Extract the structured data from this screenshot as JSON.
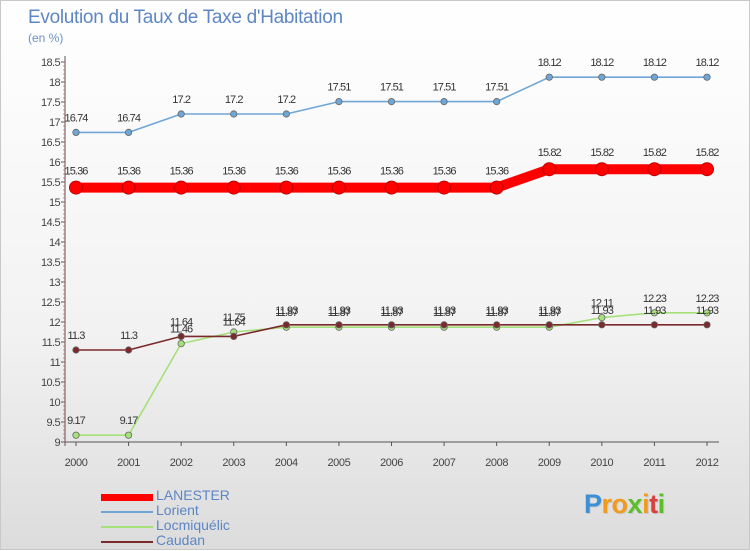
{
  "header": {
    "title": "Evolution du Taux de Taxe d'Habitation",
    "subtitle": "(en %)"
  },
  "chart_data": {
    "type": "line",
    "title": "Evolution du Taux de Taxe d'Habitation",
    "ylabel": "(en %)",
    "xlabel": "",
    "x": [
      "2000",
      "2001",
      "2002",
      "2003",
      "2004",
      "2005",
      "2006",
      "2007",
      "2008",
      "2009",
      "2010",
      "2011",
      "2012"
    ],
    "ylim": [
      9,
      18.5
    ],
    "yticks": [
      9,
      9.5,
      10,
      10.5,
      11,
      11.5,
      12,
      12.5,
      13,
      13.5,
      14,
      14.5,
      15,
      15.5,
      16,
      16.5,
      17,
      17.5,
      18,
      18.5
    ],
    "grid": false,
    "legend_position": "bottom-left",
    "series": [
      {
        "name": "LANESTER",
        "color": "#ff0000",
        "values": [
          15.36,
          15.36,
          15.36,
          15.36,
          15.36,
          15.36,
          15.36,
          15.36,
          15.36,
          15.82,
          15.82,
          15.82,
          15.82
        ],
        "labels": [
          "15.36",
          "15.36",
          "15.36",
          "15.36",
          "15.36",
          "15.36",
          "15.36",
          "15.36",
          "15.36",
          "15.82",
          "15.82",
          "15.82",
          "15.82"
        ]
      },
      {
        "name": "Lorient",
        "color": "#6fa6d6",
        "values": [
          16.74,
          16.74,
          17.2,
          17.2,
          17.2,
          17.51,
          17.51,
          17.51,
          17.51,
          18.12,
          18.12,
          18.12,
          18.12
        ],
        "labels": [
          "16.74",
          "16.74",
          "17.2",
          "17.2",
          "17.2",
          "17.51",
          "17.51",
          "17.51",
          "17.51",
          "18.12",
          "18.12",
          "18.12",
          "18.12"
        ]
      },
      {
        "name": "Locmiquélic",
        "color": "#a6e07a",
        "values": [
          9.17,
          9.17,
          11.46,
          11.75,
          11.87,
          11.87,
          11.87,
          11.87,
          11.87,
          11.87,
          12.11,
          12.23,
          12.23
        ],
        "labels": [
          "9.17",
          "9.17",
          "11.46",
          "11.75",
          "11.87",
          "11.87",
          "11.87",
          "11.87",
          "11.87",
          "11.87",
          "12.11",
          "12.23",
          "12.23"
        ]
      },
      {
        "name": "Caudan",
        "color": "#7a2a2a",
        "values": [
          11.3,
          11.3,
          11.64,
          11.64,
          11.93,
          11.93,
          11.93,
          11.93,
          11.93,
          11.93,
          11.93,
          11.93,
          11.93
        ],
        "labels": [
          "11.3",
          "11.3",
          "11.64",
          "11.64",
          "11.93",
          "11.93",
          "11.93",
          "11.93",
          "11.93",
          "11.93",
          "11.93",
          "11.93",
          "11.93"
        ]
      }
    ]
  },
  "legend": {
    "items": [
      {
        "label": "LANESTER",
        "color": "#ff0000"
      },
      {
        "label": "Lorient",
        "color": "#6fa6d6"
      },
      {
        "label": "Locmiquélic",
        "color": "#a6e07a"
      },
      {
        "label": "Caudan",
        "color": "#7a2a2a"
      }
    ]
  },
  "logo": {
    "letters": [
      "P",
      "r",
      "o",
      "x",
      "i",
      "t",
      "i"
    ],
    "colors": [
      "#3a8fd6",
      "#f29a1e",
      "#f29a1e",
      "#5cbf2a",
      "#f29a1e",
      "#d94040",
      "#5cbf2a"
    ]
  }
}
